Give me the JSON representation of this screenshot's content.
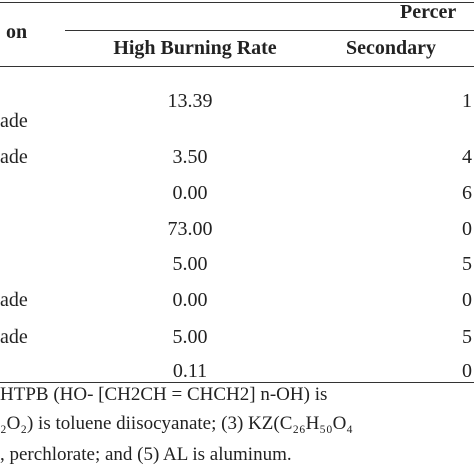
{
  "table": {
    "header": {
      "stub": "on",
      "group": "Percer",
      "columns": [
        "High Burning Rate",
        "Secondary"
      ]
    },
    "rows": [
      {
        "label": "ade",
        "value": "13.39",
        "secondary": "1"
      },
      {
        "label": "ade",
        "value": "3.50",
        "secondary": "4"
      },
      {
        "value": "0.00",
        "secondary": "6"
      },
      {
        "value": "73.00",
        "secondary": "0"
      },
      {
        "value": "5.00",
        "secondary": "5"
      },
      {
        "label": "ade",
        "value": "0.00",
        "secondary": "0"
      },
      {
        "label": "ade",
        "value": "5.00",
        "secondary": "5"
      },
      {
        "value": "0.11",
        "secondary": "0"
      }
    ]
  },
  "footnote": [
    "HTPB (HO- [CH2CH = CHCH2] n-OH) is",
    "₂O₂) is toluene diisocyanate; (3) KZ(C₂₆H₅₀O₄",
    ", perchlorate; and (5) AL is aluminum."
  ]
}
